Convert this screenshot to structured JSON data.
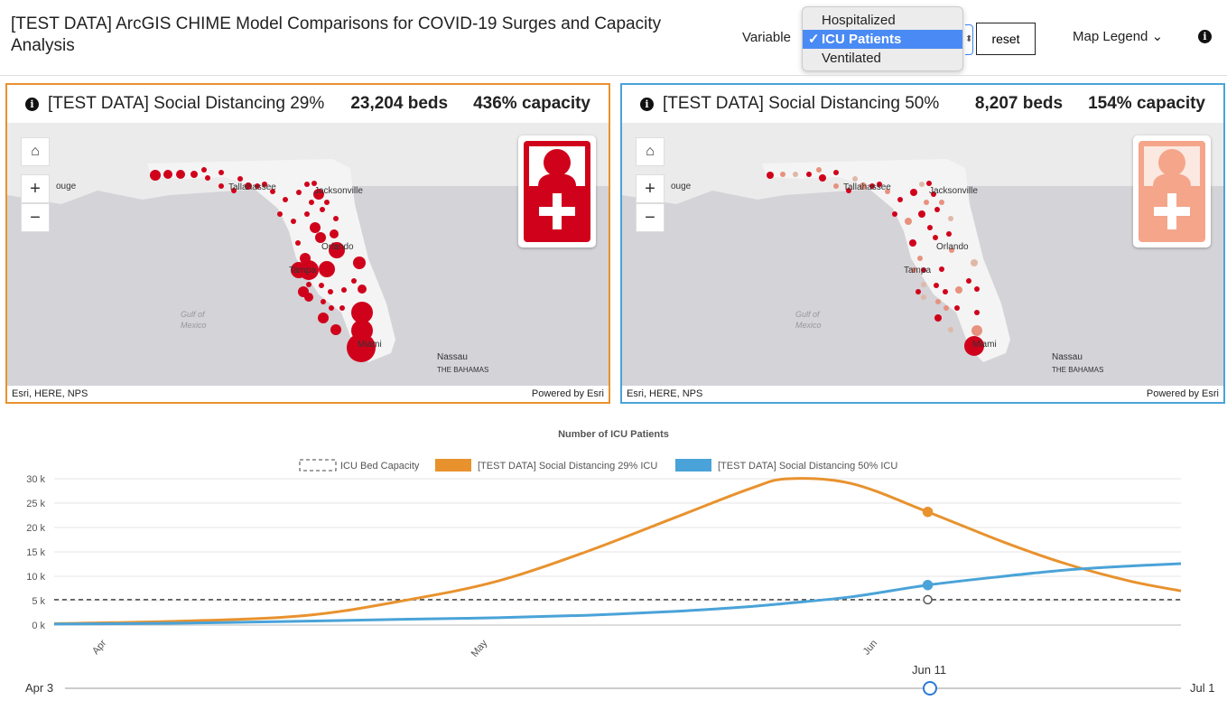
{
  "header": {
    "title": "[TEST DATA] ArcGIS CHIME Model Comparisons for COVID-19 Surges and Capacity Analysis",
    "variable_label": "Variable",
    "options": [
      "Hospitalized",
      "ICU Patients",
      "Ventilated"
    ],
    "selected": "ICU Patients",
    "check": "✓",
    "reset": "reset",
    "map_legend": "Map Legend",
    "info": "i"
  },
  "panels": [
    {
      "name": "[TEST DATA] Social Distancing 29%",
      "beds": "23,204 beds",
      "capacity": "436% capacity",
      "border": "#e8922e",
      "attr_left": "Esri, HERE, NPS",
      "attr_right": "Powered by Esri"
    },
    {
      "name": "[TEST DATA] Social Distancing 50%",
      "beds": "8,207 beds",
      "capacity": "154% capacity",
      "border": "#4aa3d8",
      "attr_left": "Esri, HERE, NPS",
      "attr_right": "Powered by Esri"
    }
  ],
  "map_labels": {
    "tallahassee": "Tallahassee",
    "jacksonville": "Jacksonville",
    "orlando": "Orlando",
    "tampa": "Tampa",
    "miami": "Miami",
    "gulf": "Gulf of",
    "mexico": "Mexico",
    "nassau": "Nassau",
    "bahamas": "THE BAHAMAS",
    "rouge": "ouge"
  },
  "chart_data": {
    "type": "line",
    "title": "Number of ICU Patients",
    "ylabel": "",
    "xlabel": "",
    "ylim": [
      0,
      30000
    ],
    "yticks": [
      "0 k",
      "5 k",
      "10 k",
      "15 k",
      "20 k",
      "25 k",
      "30 k"
    ],
    "xticks": [
      "Apr",
      "May",
      "Jun"
    ],
    "x_days_since_apr3": [
      0,
      10,
      20,
      28,
      35,
      42,
      49,
      55,
      58,
      63,
      69,
      75,
      80,
      85,
      89
    ],
    "series": [
      {
        "name": "ICU Bed Capacity",
        "color": "#444",
        "dashed": true,
        "values": [
          5200,
          5200,
          5200,
          5200,
          5200,
          5200,
          5200,
          5200,
          5200,
          5200,
          5200,
          5200,
          5200,
          5200,
          5200
        ]
      },
      {
        "name": "[TEST DATA] Social Distancing 29% ICU",
        "color": "#e8922e",
        "values": [
          300,
          800,
          2000,
          5200,
          9000,
          15000,
          22000,
          28000,
          30000,
          29000,
          23200,
          17000,
          12500,
          9000,
          7000
        ]
      },
      {
        "name": "[TEST DATA] Social Distancing 50% ICU",
        "color": "#4aa3d8",
        "values": [
          200,
          400,
          800,
          1200,
          1500,
          2000,
          2800,
          3800,
          4500,
          5800,
          8200,
          10000,
          11300,
          12100,
          12600
        ]
      }
    ],
    "selected_day": 69
  },
  "slider": {
    "start": "Apr 3",
    "end": "Jul 1",
    "current": "Jun 11",
    "fraction": 0.775
  }
}
